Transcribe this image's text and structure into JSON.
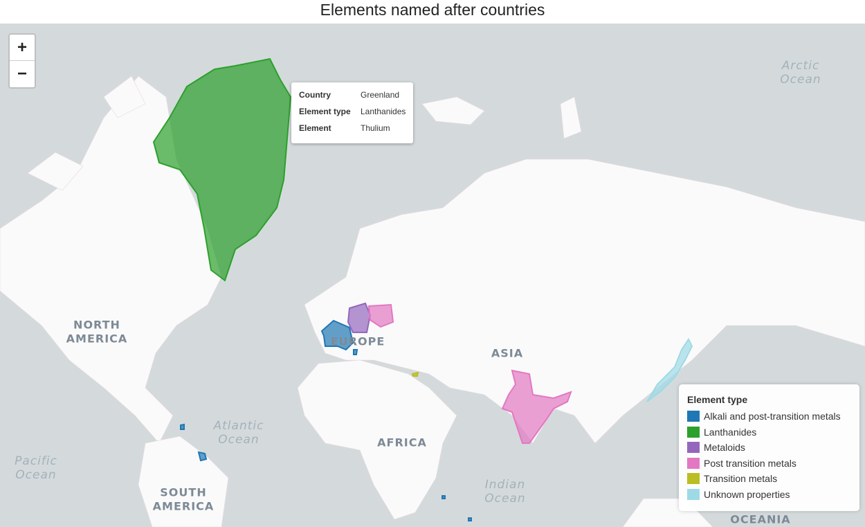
{
  "header": {
    "title": "Elements named after countries"
  },
  "zoom": {
    "in": "+",
    "out": "−"
  },
  "tooltip": {
    "rows": [
      [
        "Country",
        "Greenland"
      ],
      [
        "Element type",
        "Lanthanides"
      ],
      [
        "Element",
        "Thulium"
      ]
    ]
  },
  "legend": {
    "title": "Element type",
    "items": [
      {
        "name": "Alkali and post-transition metals",
        "color": "#1f77b4"
      },
      {
        "name": "Lanthanides",
        "color": "#2ca02c"
      },
      {
        "name": "Metaloids",
        "color": "#9467bd"
      },
      {
        "name": "Post transition metals",
        "color": "#e377c2"
      },
      {
        "name": "Transition metals",
        "color": "#bcbd22"
      },
      {
        "name": "Unknown properties",
        "color": "#9edae5"
      }
    ]
  },
  "map_labels": {
    "continents": [
      [
        "NORTH",
        "AMERICA"
      ],
      [
        "EUROPE"
      ],
      [
        "ASIA"
      ],
      [
        "AFRICA"
      ],
      [
        "SOUTH",
        "AMERICA"
      ],
      [
        "OCEANIA"
      ]
    ],
    "oceans": [
      [
        "Arctic",
        "Ocean"
      ],
      [
        "Atlantic",
        "Ocean"
      ],
      [
        "Pacific",
        "Ocean"
      ],
      [
        "Indian",
        "Ocean"
      ]
    ]
  }
}
